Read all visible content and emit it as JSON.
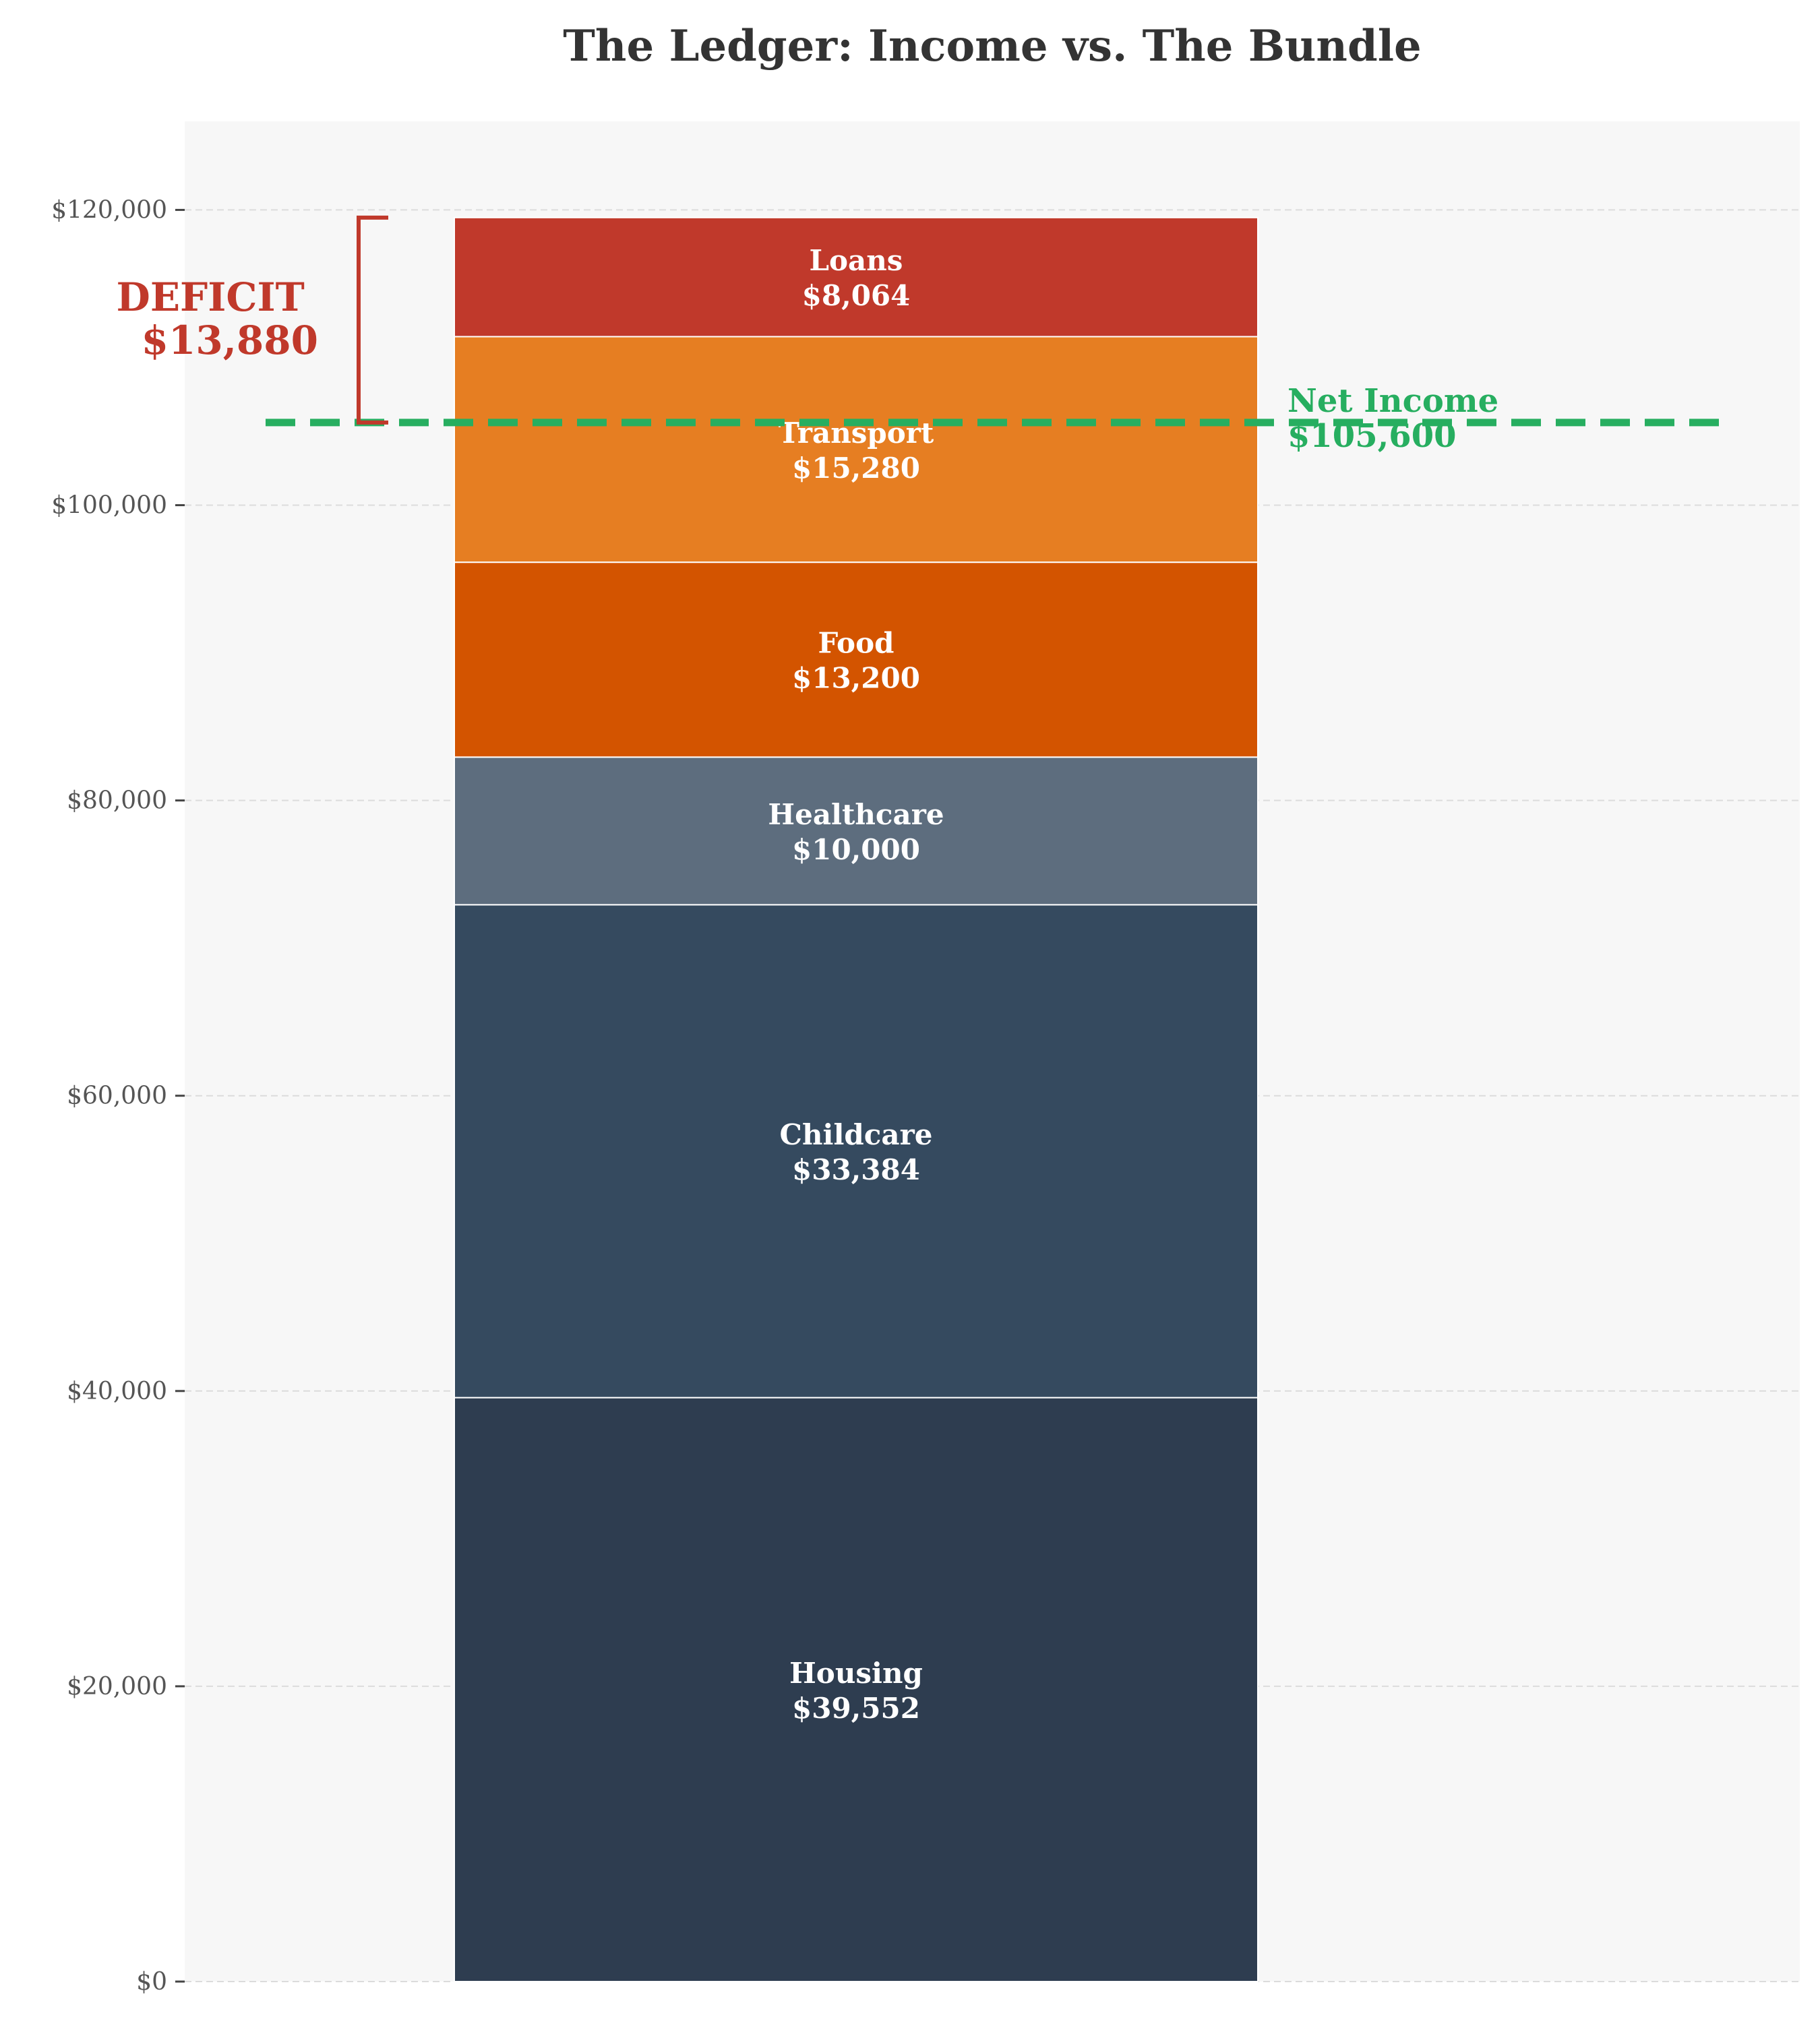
{
  "chart_data": {
    "type": "bar",
    "subtype": "stacked",
    "title": "The Ledger: Income vs. The Bundle",
    "xlabel": "",
    "ylabel": "",
    "ylim": [
      0,
      126000
    ],
    "yticks": [
      0,
      20000,
      40000,
      60000,
      80000,
      100000,
      120000
    ],
    "ytick_labels": [
      "$0",
      "$20,000",
      "$40,000",
      "$60,000",
      "$80,000",
      "$100,000",
      "$120,000"
    ],
    "grid": true,
    "segments": [
      {
        "name": "Housing",
        "value": 39552,
        "value_label": "$39,552",
        "color": "#2e3d50"
      },
      {
        "name": "Childcare",
        "value": 33384,
        "value_label": "$33,384",
        "color": "#354a5f"
      },
      {
        "name": "Healthcare",
        "value": 10000,
        "value_label": "$10,000",
        "color": "#5d6d7e"
      },
      {
        "name": "Food",
        "value": 13200,
        "value_label": "$13,200",
        "color": "#d35400"
      },
      {
        "name": "Transport",
        "value": 15280,
        "value_label": "$15,280",
        "color": "#e67e22"
      },
      {
        "name": "Loans",
        "value": 8064,
        "value_label": "$8,064",
        "color": "#c0392b"
      }
    ],
    "reference_line": {
      "label": "Net Income",
      "value": 105600,
      "value_label": "$105,600",
      "color": "#27ae60"
    },
    "deficit": {
      "label": "DEFICIT",
      "value": 13880,
      "value_label": "$13,880",
      "color": "#c0392b"
    }
  }
}
